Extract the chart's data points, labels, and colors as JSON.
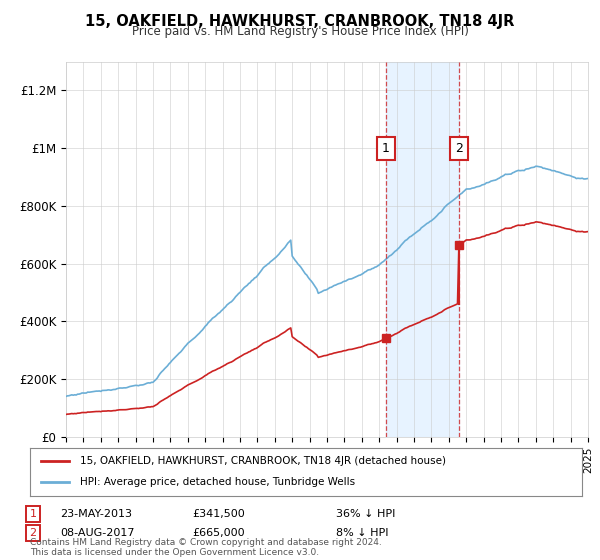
{
  "title": "15, OAKFIELD, HAWKHURST, CRANBROOK, TN18 4JR",
  "subtitle": "Price paid vs. HM Land Registry's House Price Index (HPI)",
  "legend_line1": "15, OAKFIELD, HAWKHURST, CRANBROOK, TN18 4JR (detached house)",
  "legend_line2": "HPI: Average price, detached house, Tunbridge Wells",
  "annotation1_date": "23-MAY-2013",
  "annotation1_price": "£341,500",
  "annotation1_hpi": "36% ↓ HPI",
  "annotation2_date": "08-AUG-2017",
  "annotation2_price": "£665,000",
  "annotation2_hpi": "8% ↓ HPI",
  "footer": "Contains HM Land Registry data © Crown copyright and database right 2024.\nThis data is licensed under the Open Government Licence v3.0.",
  "hpi_line_color": "#6baed6",
  "price_color": "#cc2222",
  "shade_color": "#ddeeff",
  "ylim_min": 0,
  "ylim_max": 1300000,
  "year_start": 1995,
  "year_end": 2025,
  "sale1_year": 2013.385,
  "sale1_price": 341500,
  "sale2_year": 2017.598,
  "sale2_price": 665000
}
